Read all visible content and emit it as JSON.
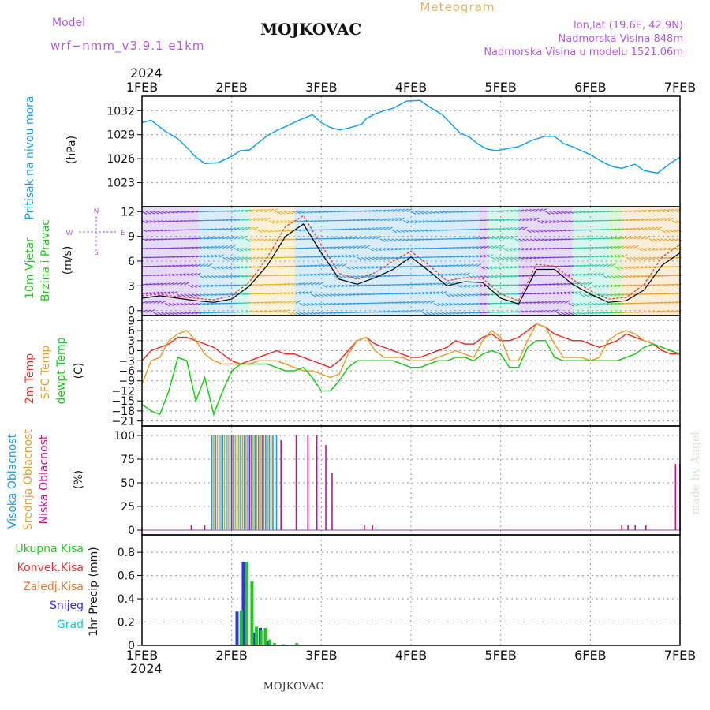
{
  "header": {
    "model_label": "Model",
    "model_name": "wrf−nmm_v3.9.1  e1km",
    "station": "MOJKOVAC",
    "title": "Meteogram",
    "coords": "lon,lat (19.6E, 42.9N)",
    "altitude": "Nadmorska Visina 848m",
    "model_altitude": "Nadmorska Visina u modelu 1521.06m"
  },
  "footer": {
    "station": "MOJKOVAC",
    "credit": "made by Angel"
  },
  "time_axis": {
    "year": "2024",
    "ticks": [
      "1FEB",
      "2FEB",
      "3FEB",
      "4FEB",
      "5FEB",
      "6FEB",
      "7FEB"
    ],
    "range_days": [
      0,
      6
    ]
  },
  "colors": {
    "pressure": "#1aa0e6",
    "temp2m": "#e63232",
    "sfc_temp": "#e6a032",
    "dewpoint": "#1ec81e",
    "wind_label": "#1ec81e",
    "speed_line": "#000000",
    "gust": "#e63232",
    "cloud_high": "#1aa0e6",
    "cloud_mid": "#e6a032",
    "cloud_low": "#c8148c",
    "precip_total": "#1ec81e",
    "precip_conv": "#e63232",
    "precip_frozen": "#e67832",
    "precip_snow": "#3232e6",
    "precip_hail": "#14c8c8",
    "header_purple": "#b45adc",
    "title_orange": "#e6b464"
  },
  "panels": {
    "pressure": {
      "labels": [
        "Pritisak na nivou mora",
        "(hPa)"
      ],
      "yticks": [
        1023,
        1026,
        1029,
        1032
      ],
      "ylim": [
        1020,
        1033.8
      ]
    },
    "wind": {
      "labels": [
        "10m Vjetar",
        "Brzina i Pravac",
        "(m/s)"
      ],
      "yticks": [
        0,
        3,
        6,
        9,
        12
      ],
      "ylim": [
        -0.6,
        12.6
      ],
      "compass": {
        "north": "N",
        "west": "W",
        "east": "E",
        "south": "S"
      }
    },
    "temp": {
      "labels": [
        "2m Temp",
        "SFC Temp",
        "dewpt Temp",
        "(C)"
      ],
      "yticks": [
        -21,
        -18,
        -15,
        -12,
        -9,
        -6,
        -3,
        0,
        3,
        6,
        9
      ],
      "ylim": [
        -22.5,
        10.5
      ]
    },
    "cloud": {
      "labels": [
        "Visoka Oblacnost",
        "Srednja Oblacnost",
        "Niska Oblacnost",
        "(%)"
      ],
      "yticks": [
        0,
        25,
        50,
        75,
        100
      ],
      "ylim": [
        -5,
        110
      ]
    },
    "precip": {
      "labels": [
        "Ukupna Kisa",
        "Konvek.Kisa",
        "Zaledj.Kisa",
        "Snijeg",
        "Grad",
        "1hr Precip (mm)"
      ],
      "yticks": [
        0,
        0.2,
        0.4,
        0.6,
        0.8
      ],
      "ylim": [
        0,
        0.95
      ]
    }
  },
  "chart_data": [
    {
      "type": "line",
      "title": "Pritisak na nivou mora",
      "ylabel": "(hPa)",
      "x": [
        0,
        0.1,
        0.25,
        0.4,
        0.5,
        0.6,
        0.7,
        0.85,
        1.0,
        1.1,
        1.2,
        1.3,
        1.4,
        1.5,
        1.6,
        1.75,
        1.9,
        2.0,
        2.1,
        2.2,
        2.3,
        2.45,
        2.5,
        2.6,
        2.7,
        2.8,
        2.95,
        3.1,
        3.2,
        3.35,
        3.45,
        3.55,
        3.65,
        3.75,
        3.85,
        3.95,
        4.1,
        4.2,
        4.35,
        4.5,
        4.6,
        4.7,
        4.8,
        4.9,
        5.0,
        5.15,
        5.25,
        5.35,
        5.5,
        5.6,
        5.75,
        5.9,
        6.0
      ],
      "series": [
        {
          "values": [
            1030.5,
            1030.8,
            1029.5,
            1028.5,
            1027.4,
            1026.2,
            1025.4,
            1025.5,
            1026.3,
            1027.0,
            1027.1,
            1028.0,
            1028.9,
            1029.5,
            1030.0,
            1030.8,
            1031.5,
            1030.5,
            1029.9,
            1029.6,
            1029.8,
            1030.3,
            1031.0,
            1031.6,
            1032.0,
            1032.3,
            1033.2,
            1033.3,
            1032.5,
            1031.5,
            1030.3,
            1029.2,
            1028.7,
            1027.8,
            1027.2,
            1027.0,
            1027.3,
            1027.5,
            1028.3,
            1028.8,
            1028.8,
            1027.9,
            1027.5,
            1027.0,
            1026.5,
            1025.5,
            1025.0,
            1024.8,
            1025.3,
            1024.5,
            1024.2,
            1025.5,
            1026.2
          ]
        }
      ]
    },
    {
      "type": "line",
      "title": "10m Vjetar Brzina i Pravac",
      "ylabel": "(m/s)",
      "x": [
        0,
        0.2,
        0.4,
        0.6,
        0.8,
        1.0,
        1.2,
        1.4,
        1.6,
        1.8,
        2.0,
        2.2,
        2.4,
        2.6,
        2.8,
        3.0,
        3.2,
        3.4,
        3.6,
        3.8,
        4.0,
        4.2,
        4.4,
        4.6,
        4.8,
        5.0,
        5.2,
        5.4,
        5.6,
        5.8,
        6.0
      ],
      "series": [
        {
          "values": [
            1.5,
            1.8,
            1.5,
            1.2,
            1.0,
            1.4,
            3.0,
            5.5,
            9.0,
            10.5,
            7.0,
            3.8,
            3.2,
            4.0,
            5.0,
            6.5,
            4.8,
            3.0,
            3.5,
            3.4,
            1.5,
            0.8,
            5.0,
            5.0,
            3.2,
            2.0,
            1.0,
            1.2,
            2.5,
            5.5,
            7.0
          ]
        },
        {
          "values": [
            1.8,
            2.0,
            1.7,
            1.5,
            1.3,
            1.8,
            3.5,
            6.5,
            10.2,
            11.5,
            8.0,
            4.5,
            3.8,
            4.6,
            6.0,
            7.2,
            5.5,
            3.6,
            4.0,
            3.9,
            2.0,
            1.2,
            5.6,
            5.4,
            3.8,
            2.4,
            1.4,
            1.6,
            3.2,
            6.5,
            8.0
          ]
        }
      ]
    },
    {
      "type": "line",
      "title": "Temperature",
      "ylabel": "(C)",
      "x": [
        0,
        0.1,
        0.2,
        0.3,
        0.4,
        0.5,
        0.6,
        0.7,
        0.8,
        0.9,
        1.0,
        1.1,
        1.2,
        1.3,
        1.4,
        1.5,
        1.6,
        1.7,
        1.8,
        1.9,
        2.0,
        2.1,
        2.2,
        2.3,
        2.4,
        2.5,
        2.6,
        2.7,
        2.8,
        2.9,
        3.0,
        3.1,
        3.2,
        3.3,
        3.4,
        3.5,
        3.6,
        3.7,
        3.8,
        3.9,
        4.0,
        4.1,
        4.2,
        4.3,
        4.4,
        4.5,
        4.6,
        4.7,
        4.8,
        4.9,
        5.0,
        5.1,
        5.2,
        5.3,
        5.4,
        5.5,
        5.6,
        5.7,
        5.8,
        5.9,
        6.0
      ],
      "series": [
        {
          "name": "2m Temp",
          "values": [
            -3,
            0,
            1,
            2,
            4,
            4,
            3,
            2,
            1,
            -1,
            -3,
            -4,
            -3,
            -2,
            -1,
            0,
            -1,
            -1,
            -2,
            -3,
            -4,
            -5,
            -3,
            0,
            3,
            4,
            2,
            1,
            0,
            -1,
            -2,
            -2,
            -1,
            0,
            1,
            3,
            2,
            2,
            4,
            5,
            3,
            3,
            4,
            6,
            8,
            7,
            5,
            4,
            3,
            3,
            2,
            1,
            2,
            3,
            5,
            4,
            3,
            2,
            0,
            -1,
            -1
          ]
        },
        {
          "name": "SFC Temp",
          "values": [
            -10,
            -3,
            -2,
            3,
            5,
            6,
            3,
            -1,
            -3,
            -4,
            -4,
            -4,
            -4,
            -3,
            -3,
            -3,
            -4,
            -5,
            -6,
            -6,
            -7,
            -8,
            -7,
            -1,
            3,
            4,
            0,
            -2,
            -2,
            -2,
            -3,
            -3,
            -3,
            -2,
            -1,
            0,
            -1,
            -2,
            3,
            6,
            4,
            -3,
            -3,
            3,
            8,
            7,
            2,
            -2,
            -2,
            -2,
            -3,
            -2,
            3,
            5,
            6,
            5,
            3,
            2,
            1,
            0,
            -1
          ]
        },
        {
          "name": "dewpt Temp",
          "values": [
            -16,
            -18,
            -19,
            -12,
            -2,
            -3,
            -15,
            -8,
            -19,
            -12,
            -6,
            -4,
            -4,
            -4,
            -4,
            -5,
            -6,
            -6,
            -5,
            -8,
            -12,
            -12,
            -9,
            -5,
            -3,
            -3,
            -3,
            -3,
            -3,
            -4,
            -5,
            -5,
            -4,
            -3,
            -3,
            -2,
            -2,
            -3,
            -1,
            0,
            -1,
            -5,
            -5,
            1,
            3,
            3,
            -2,
            -3,
            -3,
            -3,
            -3,
            -3,
            -3,
            -3,
            -2,
            -1,
            1,
            2,
            1,
            0,
            -1
          ]
        }
      ]
    },
    {
      "type": "bar",
      "title": "Oblacnost",
      "ylabel": "(%)",
      "series": [
        {
          "name": "Visoka Oblacnost",
          "x": [
            0.78,
            0.82,
            0.86,
            0.9,
            0.94,
            0.98,
            1.02,
            1.06,
            1.1,
            1.14,
            1.18,
            1.22,
            1.26,
            1.3,
            1.34,
            1.38,
            1.42,
            1.46,
            1.5
          ],
          "values": [
            100,
            100,
            100,
            100,
            100,
            100,
            100,
            100,
            100,
            100,
            100,
            100,
            100,
            100,
            100,
            100,
            100,
            100,
            100
          ]
        },
        {
          "name": "Srednja Oblacnost",
          "x": [
            0.8,
            0.84,
            0.88,
            0.92,
            0.96,
            1.0,
            1.04,
            1.08,
            1.12,
            1.16,
            1.2,
            1.24,
            1.28,
            1.32,
            1.36,
            1.4,
            1.44
          ],
          "values": [
            100,
            100,
            100,
            100,
            100,
            100,
            100,
            100,
            100,
            100,
            100,
            100,
            100,
            100,
            100,
            100,
            100
          ]
        },
        {
          "name": "Niska Oblacnost",
          "x": [
            0.55,
            0.7,
            1.0,
            1.2,
            1.35,
            1.55,
            1.72,
            1.85,
            1.95,
            2.05,
            2.12,
            2.48,
            2.57,
            5.35,
            5.42,
            5.5,
            5.62,
            5.95,
            6.0
          ],
          "values": [
            5,
            5,
            100,
            100,
            100,
            95,
            100,
            100,
            100,
            90,
            60,
            5,
            5,
            5,
            5,
            5,
            5,
            70,
            70
          ]
        }
      ]
    },
    {
      "type": "bar",
      "title": "1hr Precip",
      "ylabel": "1hr Precip (mm)",
      "series": [
        {
          "name": "Ukupna Kisa",
          "x": [
            1.08,
            1.14,
            1.2,
            1.25,
            1.3,
            1.35,
            1.4,
            1.45,
            1.55,
            1.7
          ],
          "values": [
            0.3,
            0.72,
            0.55,
            0.16,
            0.13,
            0.15,
            0.05,
            0.02,
            0.01,
            0.02
          ]
        },
        {
          "name": "Konvek.Kisa",
          "x": [
            1.15
          ],
          "values": [
            0.01
          ]
        },
        {
          "name": "Zaledj.Kisa",
          "x": [],
          "values": []
        },
        {
          "name": "Snijeg",
          "x": [
            1.06,
            1.13,
            1.26,
            1.32,
            1.4
          ],
          "values": [
            0.29,
            0.72,
            0.11,
            0.15,
            0.04
          ]
        },
        {
          "name": "Grad",
          "x": [],
          "values": []
        }
      ]
    }
  ]
}
